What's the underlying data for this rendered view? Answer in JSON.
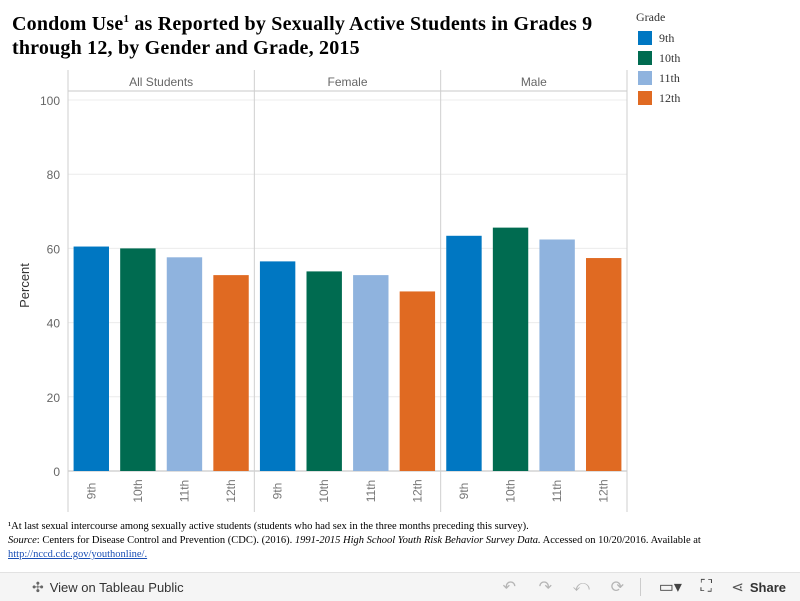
{
  "title_main": "Condom Use",
  "title_sup": "1",
  "title_rest": " as Reported by Sexually Active Students in Grades 9 through 12, by Gender and Grade, 2015",
  "legend": {
    "title": "Grade",
    "items": [
      {
        "label": "9th",
        "color": "#0077c2"
      },
      {
        "label": "10th",
        "color": "#006b50"
      },
      {
        "label": "11th",
        "color": "#8fb3de"
      },
      {
        "label": "12th",
        "color": "#e06a22"
      }
    ]
  },
  "chart_data": {
    "type": "bar",
    "title": "Condom Use¹ as Reported by Sexually Active Students in Grades 9 through 12, by Gender and Grade, 2015",
    "ylabel": "Percent",
    "ylim": [
      0,
      100
    ],
    "yticks": [
      0,
      20,
      40,
      60,
      80,
      100
    ],
    "panels": [
      "All Students",
      "Female",
      "Male"
    ],
    "categories": [
      "9th",
      "10th",
      "11th",
      "12th"
    ],
    "colors": [
      "#0077c2",
      "#006b50",
      "#8fb3de",
      "#e06a22"
    ],
    "values": [
      [
        60.5,
        60.0,
        57.6,
        52.8
      ],
      [
        56.5,
        53.8,
        52.8,
        48.4
      ],
      [
        63.4,
        65.6,
        62.4,
        57.4
      ]
    ],
    "grid": true
  },
  "footnote": {
    "line1": "¹At last sexual intercourse among sexually active students (students who had sex in the three months preceding this survey).",
    "source_label": "Source",
    "source_text": ": Centers for Disease Control and Prevention (CDC). (2016). ",
    "source_title": "1991-2015 High School Youth Risk Behavior Survey Data.",
    "source_tail": " Accessed on 10/20/2016. Available at",
    "link": "http://nccd.cdc.gov/youthonline/."
  },
  "toolbar": {
    "view_label": "View on Tableau Public",
    "share_label": "Share",
    "view_icon": "tableau-logo-icon",
    "undo_icon": "undo-icon",
    "redo_icon": "redo-icon",
    "revert_icon": "revert-icon",
    "refresh_icon": "refresh-icon",
    "download_icon": "download-icon",
    "fullscreen_icon": "fullscreen-icon",
    "share_icon": "share-icon"
  }
}
